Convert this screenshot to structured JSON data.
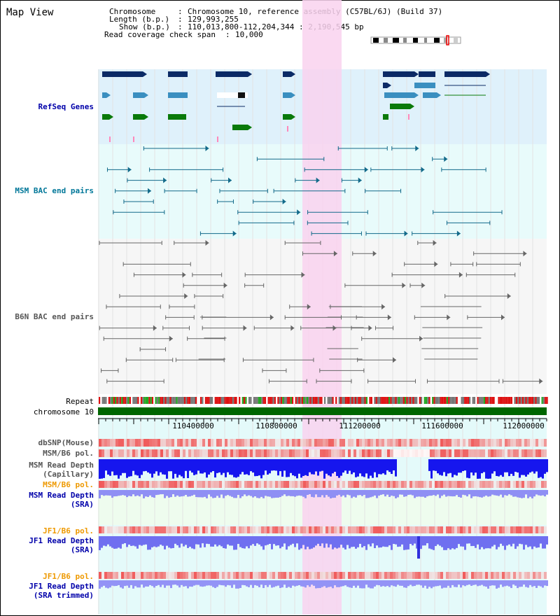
{
  "title": "Map View",
  "info": {
    "chromosome_label": "Chromosome",
    "chromosome_value": "Chromosome 10, reference assembly (C57BL/6J) (Build 37)",
    "length_label": "Length (b.p.)",
    "length_value": "129,993,255",
    "show_label": "Show (b.p.)",
    "show_value": "110,013,800-112,204,344 : 2,190,545 bp",
    "coverage_label": "Read coverage check span",
    "coverage_value": "10,000"
  },
  "tracks": {
    "refseq": "RefSeq Genes",
    "msm_bac": "MSM BAC end pairs",
    "b6n_bac": "B6N BAC end pairs",
    "repeat": "Repeat",
    "chromosome": "chromosome 10",
    "dbsnp": "dbSNP(Mouse)",
    "msm_b6_pol_1": "MSM/B6 pol.",
    "msm_depth_cap": "MSM Read Depth\n(Capillary)",
    "msm_b6_pol_2": "MSM/B6 pol.",
    "msm_depth_sra": "MSM Read Depth\n(SRA)",
    "jf1_b6_pol_1": "JF1/B6 pol.",
    "jf1_depth_sra": "JF1 Read Depth\n(SRA)",
    "jf1_b6_pol_2": "JF1/B6 pol.",
    "jf1_depth_trim": "JF1 Read Depth\n(SRA trimmed)"
  },
  "axis": {
    "ticks": [
      "110400000",
      "110800000",
      "111200000",
      "111600000",
      "112000000"
    ]
  },
  "colors": {
    "refseq_label": "#0000aa",
    "msm_label": "#007799",
    "b6n_label": "#555555",
    "orange_label": "#ee9900",
    "highlight": "#f9d2ee",
    "dark_gene": "#0b2a66",
    "mid_gene": "#3a8fc0",
    "green_gene": "#0a7a0a",
    "chrom_green": "#006600"
  }
}
